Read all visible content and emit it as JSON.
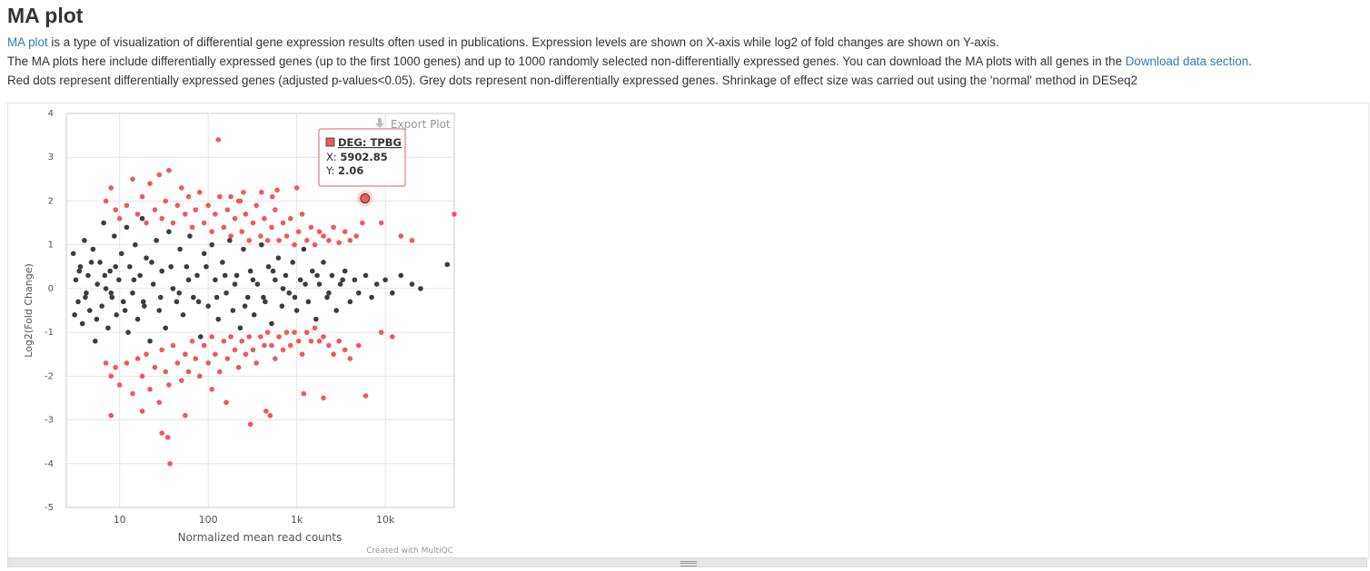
{
  "title": "MA plot",
  "desc": {
    "line1_link": "MA plot",
    "line1_rest": " is a type of visualization of differential gene expression results often used in publications. Expression levels are shown on X-axis while log2 of fold changes are shown on Y-axis.",
    "line2_text": "The MA plots here include differentially expressed genes (up to the first 1000 genes) and up to 1000 randomly selected non-differentially expressed genes. You can download the MA plots with all genes in the ",
    "line2_link": "Download data section",
    "line2_end": ".",
    "line3": "Red dots represent differentially expressed genes (adjusted p-values<0.05). Grey dots represent non-differentially expressed genes. Shrinkage of effect size was carried out using the 'normal' method in DESeq2"
  },
  "export_label": "Export Plot",
  "credit": "Created with MultiQC",
  "tooltip": {
    "name": "DEG: TPBG",
    "x_label": "X: ",
    "x_value": "5902.85",
    "y_label": "Y: ",
    "y_value": "2.06"
  },
  "colors": {
    "deg": "#ef5a5a",
    "non_deg": "#3c3c41",
    "link": "#337ab7"
  },
  "chart_data": {
    "type": "scatter",
    "xlabel": "Normalized mean read counts",
    "ylabel": "Log2(Fold Change)",
    "x_scale": "log",
    "xlim": [
      2.5,
      60000
    ],
    "ylim": [
      -5,
      4
    ],
    "x_ticks": [
      {
        "value": 10,
        "label": "10"
      },
      {
        "value": 100,
        "label": "100"
      },
      {
        "value": 1000,
        "label": "1k"
      },
      {
        "value": 10000,
        "label": "10k"
      }
    ],
    "y_ticks": [
      -5,
      -4,
      -3,
      -2,
      -1,
      0,
      1,
      2,
      3,
      4
    ],
    "grid": true,
    "highlight": {
      "name": "DEG: TPBG",
      "x": 5902.85,
      "y": 2.06
    },
    "series": [
      {
        "color": "#3c3c41",
        "points": [
          [
            3,
            0.8
          ],
          [
            3.2,
            0.2
          ],
          [
            3.4,
            -0.3
          ],
          [
            3.6,
            0.5
          ],
          [
            3.8,
            -0.8
          ],
          [
            4,
            1.1
          ],
          [
            4.2,
            -0.1
          ],
          [
            4.4,
            0.3
          ],
          [
            4.6,
            -0.5
          ],
          [
            5,
            0.9
          ],
          [
            5.3,
            -1.2
          ],
          [
            5.6,
            0.1
          ],
          [
            6,
            0.6
          ],
          [
            6.3,
            -0.4
          ],
          [
            6.6,
            1.5
          ],
          [
            7,
            0
          ],
          [
            7.4,
            -0.9
          ],
          [
            7.8,
            0.4
          ],
          [
            8.2,
            -0.2
          ],
          [
            8.7,
            1.2
          ],
          [
            9.2,
            -0.6
          ],
          [
            9.8,
            0.2
          ],
          [
            10.5,
            0.8
          ],
          [
            11,
            -0.3
          ],
          [
            12,
            1.4
          ],
          [
            12.5,
            -1
          ],
          [
            13,
            0.5
          ],
          [
            14,
            -0.1
          ],
          [
            15,
            1
          ],
          [
            16,
            -0.7
          ],
          [
            17,
            0.3
          ],
          [
            18,
            1.6
          ],
          [
            19,
            -0.4
          ],
          [
            20,
            0.7
          ],
          [
            22,
            -1.2
          ],
          [
            24,
            0.1
          ],
          [
            26,
            1.1
          ],
          [
            28,
            -0.5
          ],
          [
            30,
            0.4
          ],
          [
            33,
            -0.9
          ],
          [
            36,
            1.3
          ],
          [
            40,
            0
          ],
          [
            44,
            -0.3
          ],
          [
            48,
            0.9
          ],
          [
            52,
            -0.6
          ],
          [
            57,
            0.5
          ],
          [
            62,
            1.2
          ],
          [
            68,
            -0.2
          ],
          [
            75,
            0.3
          ],
          [
            82,
            -1.1
          ],
          [
            90,
            0.8
          ],
          [
            100,
            -0.4
          ],
          [
            110,
            1
          ],
          [
            120,
            0.2
          ],
          [
            130,
            -0.7
          ],
          [
            145,
            0.6
          ],
          [
            160,
            -0.1
          ],
          [
            175,
            1.1
          ],
          [
            190,
            -0.5
          ],
          [
            210,
            0.3
          ],
          [
            230,
            -0.9
          ],
          [
            250,
            0.9
          ],
          [
            280,
            -0.2
          ],
          [
            300,
            0.4
          ],
          [
            330,
            -0.6
          ],
          [
            360,
            0.1
          ],
          [
            400,
            1
          ],
          [
            440,
            -0.3
          ],
          [
            480,
            0.5
          ],
          [
            520,
            -0.8
          ],
          [
            570,
            0.2
          ],
          [
            620,
            0.7
          ],
          [
            680,
            -0.4
          ],
          [
            750,
            0.3
          ],
          [
            820,
            -0.1
          ],
          [
            900,
            0.6
          ],
          [
            1000,
            -0.5
          ],
          [
            1100,
            0.2
          ],
          [
            1200,
            0.9
          ],
          [
            1350,
            -0.3
          ],
          [
            1500,
            0.4
          ],
          [
            1650,
            -0.7
          ],
          [
            1800,
            0.1
          ],
          [
            2000,
            0.6
          ],
          [
            2200,
            -0.2
          ],
          [
            2500,
            0.3
          ],
          [
            2800,
            -0.5
          ],
          [
            3100,
            0.1
          ],
          [
            3500,
            0.4
          ],
          [
            4000,
            -0.3
          ],
          [
            4500,
            0.2
          ],
          [
            5000,
            -0.1
          ],
          [
            6000,
            0.3
          ],
          [
            7000,
            -0.2
          ],
          [
            8000,
            0.1
          ],
          [
            10000,
            0.2
          ],
          [
            12000,
            -0.1
          ],
          [
            15000,
            0.3
          ],
          [
            20000,
            0.1
          ],
          [
            25000,
            0
          ],
          [
            50000,
            0.55
          ],
          [
            3.1,
            -0.6
          ],
          [
            3.5,
            0.4
          ],
          [
            4.1,
            -0.2
          ],
          [
            4.8,
            0.6
          ],
          [
            5.5,
            -0.7
          ],
          [
            6.8,
            0.3
          ],
          [
            8,
            -0.1
          ],
          [
            9,
            0.5
          ],
          [
            11.5,
            -0.5
          ],
          [
            14.5,
            0.2
          ],
          [
            18.5,
            -0.3
          ],
          [
            23,
            0.6
          ],
          [
            29,
            -0.2
          ],
          [
            38,
            0.5
          ],
          [
            47,
            -0.1
          ],
          [
            60,
            0.2
          ],
          [
            78,
            -0.3
          ],
          [
            95,
            0.5
          ],
          [
            125,
            -0.2
          ],
          [
            155,
            0.3
          ],
          [
            200,
            0.1
          ],
          [
            260,
            -0.4
          ],
          [
            320,
            0.2
          ],
          [
            420,
            -0.2
          ],
          [
            540,
            0.4
          ],
          [
            700,
            0
          ],
          [
            950,
            -0.2
          ],
          [
            1250,
            0.1
          ],
          [
            1700,
            0.3
          ],
          [
            2300,
            -0.1
          ],
          [
            3300,
            0.2
          ]
        ]
      },
      {
        "color": "#ef5a5a",
        "points": [
          [
            7,
            2
          ],
          [
            8,
            2.3
          ],
          [
            9,
            1.8
          ],
          [
            10,
            1.6
          ],
          [
            12,
            1.9
          ],
          [
            14,
            2.5
          ],
          [
            16,
            1.7
          ],
          [
            18,
            2.1
          ],
          [
            20,
            1.5
          ],
          [
            22,
            2.4
          ],
          [
            25,
            1.8
          ],
          [
            28,
            2.6
          ],
          [
            30,
            1.6
          ],
          [
            33,
            2
          ],
          [
            36,
            2.7
          ],
          [
            40,
            1.5
          ],
          [
            45,
            1.9
          ],
          [
            50,
            2.3
          ],
          [
            55,
            1.7
          ],
          [
            60,
            2.1
          ],
          [
            66,
            1.4
          ],
          [
            72,
            1.8
          ],
          [
            80,
            2.2
          ],
          [
            90,
            1.5
          ],
          [
            100,
            1.9
          ],
          [
            110,
            1.3
          ],
          [
            120,
            1.7
          ],
          [
            135,
            2.1
          ],
          [
            150,
            1.4
          ],
          [
            165,
            1.8
          ],
          [
            180,
            1.2
          ],
          [
            200,
            1.6
          ],
          [
            220,
            2
          ],
          [
            240,
            1.3
          ],
          [
            265,
            1.7
          ],
          [
            290,
            1.1
          ],
          [
            320,
            1.5
          ],
          [
            350,
            1.9
          ],
          [
            390,
            1.2
          ],
          [
            430,
            1.6
          ],
          [
            470,
            1.1
          ],
          [
            520,
            1.4
          ],
          [
            570,
            1.8
          ],
          [
            630,
            1.1
          ],
          [
            700,
            1.5
          ],
          [
            770,
            1.2
          ],
          [
            850,
            1.6
          ],
          [
            940,
            1
          ],
          [
            1050,
            1.3
          ],
          [
            1150,
            1.7
          ],
          [
            1300,
            1.1
          ],
          [
            1450,
            1.4
          ],
          [
            1600,
            1
          ],
          [
            1800,
            1.3
          ],
          [
            2000,
            1.2
          ],
          [
            2300,
            1.1
          ],
          [
            2600,
            1.4
          ],
          [
            3000,
            1.05
          ],
          [
            3500,
            1.3
          ],
          [
            4000,
            1.1
          ],
          [
            4700,
            1.2
          ],
          [
            5500,
            1.5
          ],
          [
            9000,
            1.5
          ],
          [
            15000,
            1.2
          ],
          [
            20000,
            1.1
          ],
          [
            60000,
            1.7
          ],
          [
            130,
            3.4
          ],
          [
            250,
            2.2
          ],
          [
            400,
            2.2
          ],
          [
            1000,
            2.3
          ],
          [
            600,
            2.25
          ],
          [
            180,
            2.1
          ],
          [
            230,
            2
          ],
          [
            530,
            2.1
          ],
          [
            7,
            -1.7
          ],
          [
            8,
            -2
          ],
          [
            9,
            -1.8
          ],
          [
            10,
            -2.2
          ],
          [
            12,
            -1.7
          ],
          [
            14,
            -2.4
          ],
          [
            16,
            -1.6
          ],
          [
            18,
            -2
          ],
          [
            20,
            -1.5
          ],
          [
            22,
            -2.3
          ],
          [
            25,
            -1.8
          ],
          [
            28,
            -2.6
          ],
          [
            30,
            -1.4
          ],
          [
            33,
            -1.9
          ],
          [
            36,
            -2.2
          ],
          [
            40,
            -1.3
          ],
          [
            45,
            -1.7
          ],
          [
            50,
            -2.1
          ],
          [
            55,
            -1.5
          ],
          [
            60,
            -1.9
          ],
          [
            66,
            -1.2
          ],
          [
            72,
            -1.6
          ],
          [
            80,
            -2
          ],
          [
            90,
            -1.3
          ],
          [
            100,
            -1.7
          ],
          [
            110,
            -1.1
          ],
          [
            120,
            -1.5
          ],
          [
            135,
            -1.9
          ],
          [
            150,
            -1.2
          ],
          [
            165,
            -1.6
          ],
          [
            180,
            -1.1
          ],
          [
            200,
            -1.4
          ],
          [
            220,
            -1.8
          ],
          [
            240,
            -1.2
          ],
          [
            265,
            -1.5
          ],
          [
            290,
            -1.1
          ],
          [
            320,
            -1.4
          ],
          [
            350,
            -1.7
          ],
          [
            390,
            -1.1
          ],
          [
            430,
            -1.3
          ],
          [
            470,
            -1
          ],
          [
            520,
            -1.3
          ],
          [
            570,
            -1.6
          ],
          [
            630,
            -1.1
          ],
          [
            700,
            -1.4
          ],
          [
            770,
            -1
          ],
          [
            850,
            -1.3
          ],
          [
            940,
            -1
          ],
          [
            1050,
            -1.2
          ],
          [
            1150,
            -1.5
          ],
          [
            1300,
            -1
          ],
          [
            1450,
            -1.2
          ],
          [
            1600,
            -0.9
          ],
          [
            1800,
            -1.2
          ],
          [
            2000,
            -1.1
          ],
          [
            2300,
            -1.3
          ],
          [
            2600,
            -1.5
          ],
          [
            3000,
            -1.2
          ],
          [
            3500,
            -1.4
          ],
          [
            4000,
            -1.6
          ],
          [
            5000,
            -1.3
          ],
          [
            6000,
            -2.45
          ],
          [
            9000,
            -1
          ],
          [
            12000,
            -1.1
          ],
          [
            8,
            -2.9
          ],
          [
            18,
            -2.8
          ],
          [
            30,
            -3.3
          ],
          [
            35,
            -3.4
          ],
          [
            37,
            -4
          ],
          [
            55,
            -2.9
          ],
          [
            110,
            -2.3
          ],
          [
            160,
            -2.6
          ],
          [
            300,
            -3.1
          ],
          [
            450,
            -2.8
          ],
          [
            500,
            -2.9
          ],
          [
            1200,
            -2.4
          ],
          [
            2000,
            -2.5
          ]
        ]
      }
    ]
  }
}
